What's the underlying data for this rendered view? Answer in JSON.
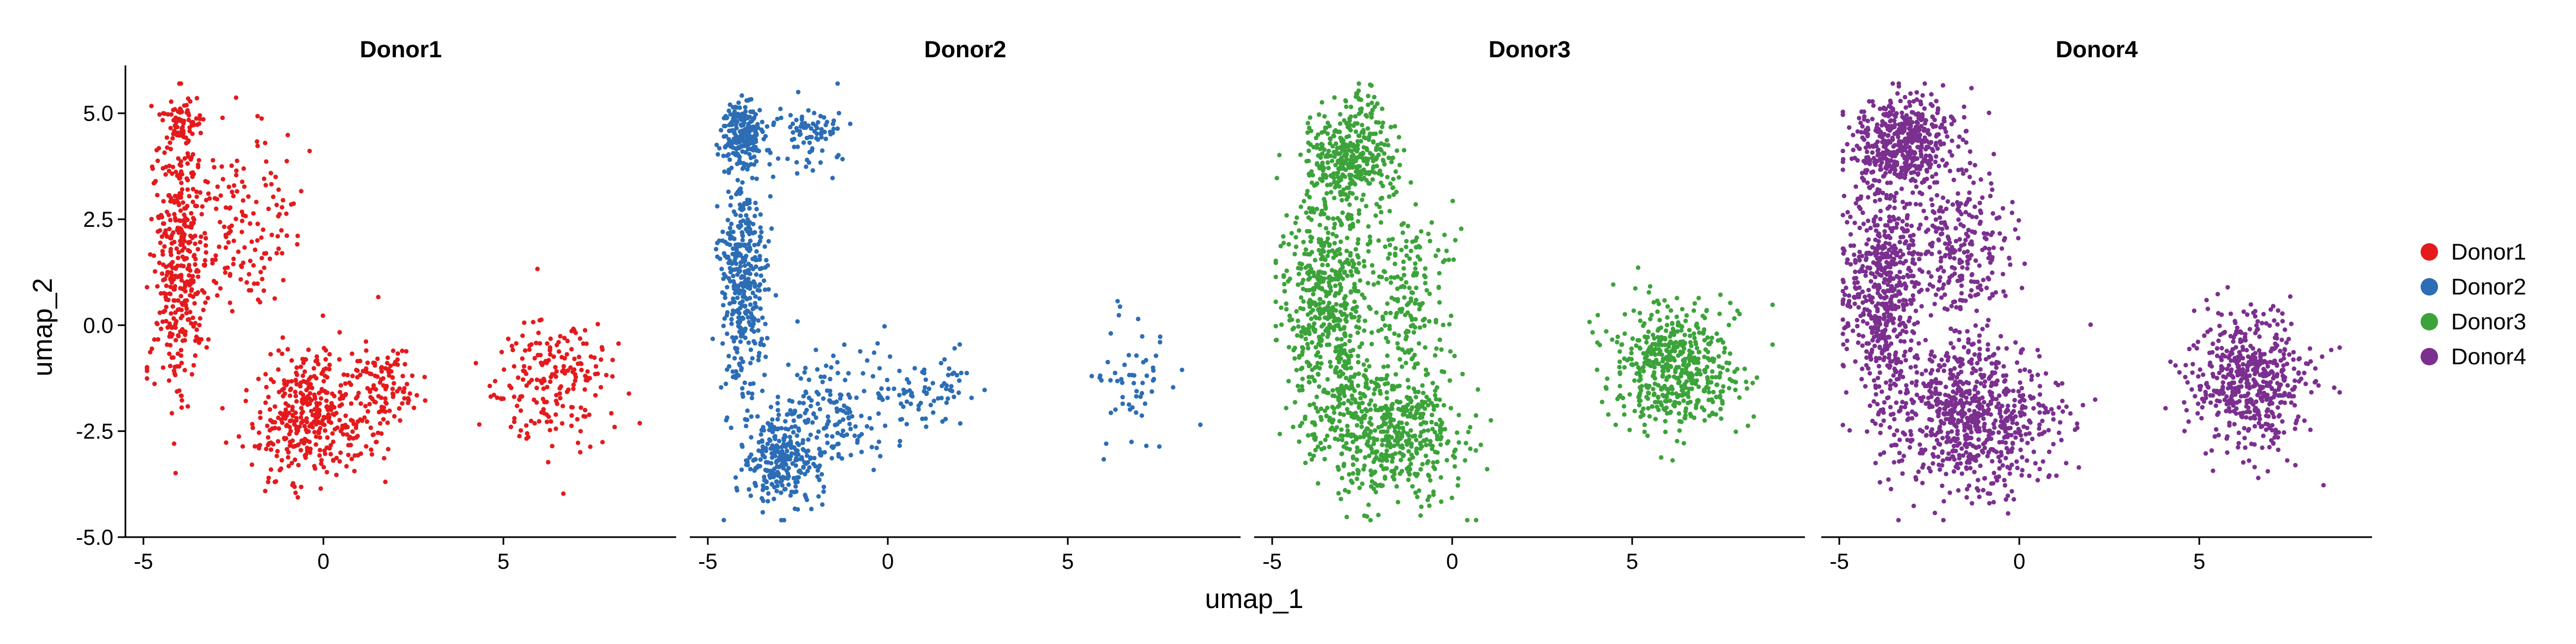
{
  "chart_data": {
    "type": "scatter",
    "facet_by": "donor",
    "xlabel": "umap_1",
    "ylabel": "umap_2",
    "xlim": [
      -5.5,
      9.8
    ],
    "ylim": [
      -5.0,
      6.0
    ],
    "x_ticks": [
      -5,
      0,
      5
    ],
    "x_tick_labels": [
      "-5",
      "0",
      "5"
    ],
    "y_ticks": [
      5.0,
      2.5,
      0.0,
      -2.5,
      -5.0
    ],
    "y_tick_labels": [
      "5.0",
      "2.5",
      "0.0",
      "-2.5",
      "-5.0"
    ],
    "legend_position": "right",
    "grid": false,
    "series": [
      {
        "name": "Donor1",
        "color": "#e41a1c",
        "count": 1300,
        "seed": 11,
        "clusters": [
          {
            "cx": -4.0,
            "cy": 1.5,
            "sx": 0.45,
            "sy": 2.0,
            "w": 0.28
          },
          {
            "cx": -2.3,
            "cy": 2.5,
            "sx": 1.0,
            "sy": 1.3,
            "w": 0.12
          },
          {
            "cx": -4.0,
            "cy": 4.8,
            "sx": 0.35,
            "sy": 0.35,
            "w": 0.06
          },
          {
            "cx": -0.3,
            "cy": -2.1,
            "sx": 1.1,
            "sy": 1.0,
            "w": 0.32
          },
          {
            "cx": 1.8,
            "cy": -1.5,
            "sx": 0.6,
            "sy": 0.6,
            "w": 0.07
          },
          {
            "cx": 6.3,
            "cy": -1.2,
            "sx": 1.1,
            "sy": 1.0,
            "w": 0.15
          }
        ]
      },
      {
        "name": "Donor2",
        "color": "#2c6db5",
        "count": 1250,
        "seed": 23,
        "clusters": [
          {
            "cx": -4.0,
            "cy": 4.5,
            "sx": 0.4,
            "sy": 0.5,
            "w": 0.18
          },
          {
            "cx": -4.0,
            "cy": 1.0,
            "sx": 0.4,
            "sy": 1.5,
            "w": 0.32
          },
          {
            "cx": -3.0,
            "cy": -3.2,
            "sx": 0.7,
            "sy": 0.7,
            "w": 0.22
          },
          {
            "cx": -1.5,
            "cy": -2.0,
            "sx": 1.0,
            "sy": 0.9,
            "w": 0.12
          },
          {
            "cx": 1.2,
            "cy": -1.6,
            "sx": 0.9,
            "sy": 0.6,
            "w": 0.06
          },
          {
            "cx": 6.8,
            "cy": -1.5,
            "sx": 0.8,
            "sy": 1.1,
            "w": 0.04
          },
          {
            "cx": -2.0,
            "cy": 4.5,
            "sx": 0.6,
            "sy": 0.5,
            "w": 0.06
          }
        ]
      },
      {
        "name": "Donor3",
        "color": "#3ca33a",
        "count": 2200,
        "seed": 37,
        "clusters": [
          {
            "cx": -2.8,
            "cy": 4.0,
            "sx": 0.8,
            "sy": 0.8,
            "w": 0.18
          },
          {
            "cx": -3.5,
            "cy": 0.5,
            "sx": 0.8,
            "sy": 1.8,
            "w": 0.25
          },
          {
            "cx": -1.2,
            "cy": 0.8,
            "sx": 0.7,
            "sy": 1.2,
            "w": 0.08
          },
          {
            "cx": -1.8,
            "cy": -2.5,
            "sx": 1.3,
            "sy": 1.1,
            "w": 0.25
          },
          {
            "cx": 6.2,
            "cy": -1.0,
            "sx": 1.1,
            "sy": 0.95,
            "w": 0.24
          }
        ]
      },
      {
        "name": "Donor4",
        "color": "#7b2f8f",
        "count": 2600,
        "seed": 53,
        "clusters": [
          {
            "cx": -3.2,
            "cy": 4.3,
            "sx": 0.9,
            "sy": 0.7,
            "w": 0.18
          },
          {
            "cx": -3.8,
            "cy": 0.8,
            "sx": 0.7,
            "sy": 1.8,
            "w": 0.22
          },
          {
            "cx": -1.6,
            "cy": 1.8,
            "sx": 0.9,
            "sy": 1.2,
            "w": 0.1
          },
          {
            "cx": -1.2,
            "cy": -2.2,
            "sx": 1.4,
            "sy": 1.1,
            "w": 0.28
          },
          {
            "cx": 6.5,
            "cy": -1.3,
            "sx": 1.0,
            "sy": 1.0,
            "w": 0.22
          }
        ]
      }
    ]
  }
}
